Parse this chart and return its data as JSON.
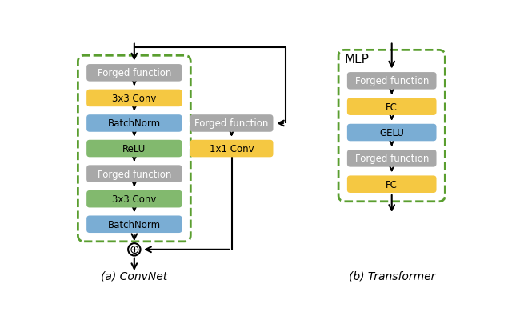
{
  "convnet": {
    "main_blocks": [
      {
        "label": "Forged function",
        "color": "#a8a8a8",
        "text_color": "white"
      },
      {
        "label": "3x3 Conv",
        "color": "#f5c842",
        "text_color": "black"
      },
      {
        "label": "BatchNorm",
        "color": "#7aadd4",
        "text_color": "black"
      },
      {
        "label": "ReLU",
        "color": "#82b96e",
        "text_color": "black"
      },
      {
        "label": "Forged function",
        "color": "#a8a8a8",
        "text_color": "white"
      },
      {
        "label": "3x3 Conv",
        "color": "#82b96e",
        "text_color": "black"
      },
      {
        "label": "BatchNorm",
        "color": "#7aadd4",
        "text_color": "black"
      }
    ],
    "skip_blocks": [
      {
        "label": "Forged function",
        "color": "#a8a8a8",
        "text_color": "white"
      },
      {
        "label": "1x1 Conv",
        "color": "#f5c842",
        "text_color": "black"
      }
    ],
    "caption": "(a) ConvNet",
    "dashed_box_color": "#5a9e2f"
  },
  "transformer": {
    "blocks": [
      {
        "label": "Forged function",
        "color": "#a8a8a8",
        "text_color": "white"
      },
      {
        "label": "FC",
        "color": "#f5c842",
        "text_color": "black"
      },
      {
        "label": "GELU",
        "color": "#7aadd4",
        "text_color": "black"
      },
      {
        "label": "Forged function",
        "color": "#a8a8a8",
        "text_color": "white"
      },
      {
        "label": "FC",
        "color": "#f5c842",
        "text_color": "black"
      }
    ],
    "caption": "(b) Transformer",
    "dashed_box_color": "#5a9e2f",
    "title": "MLP"
  },
  "background_color": "white"
}
